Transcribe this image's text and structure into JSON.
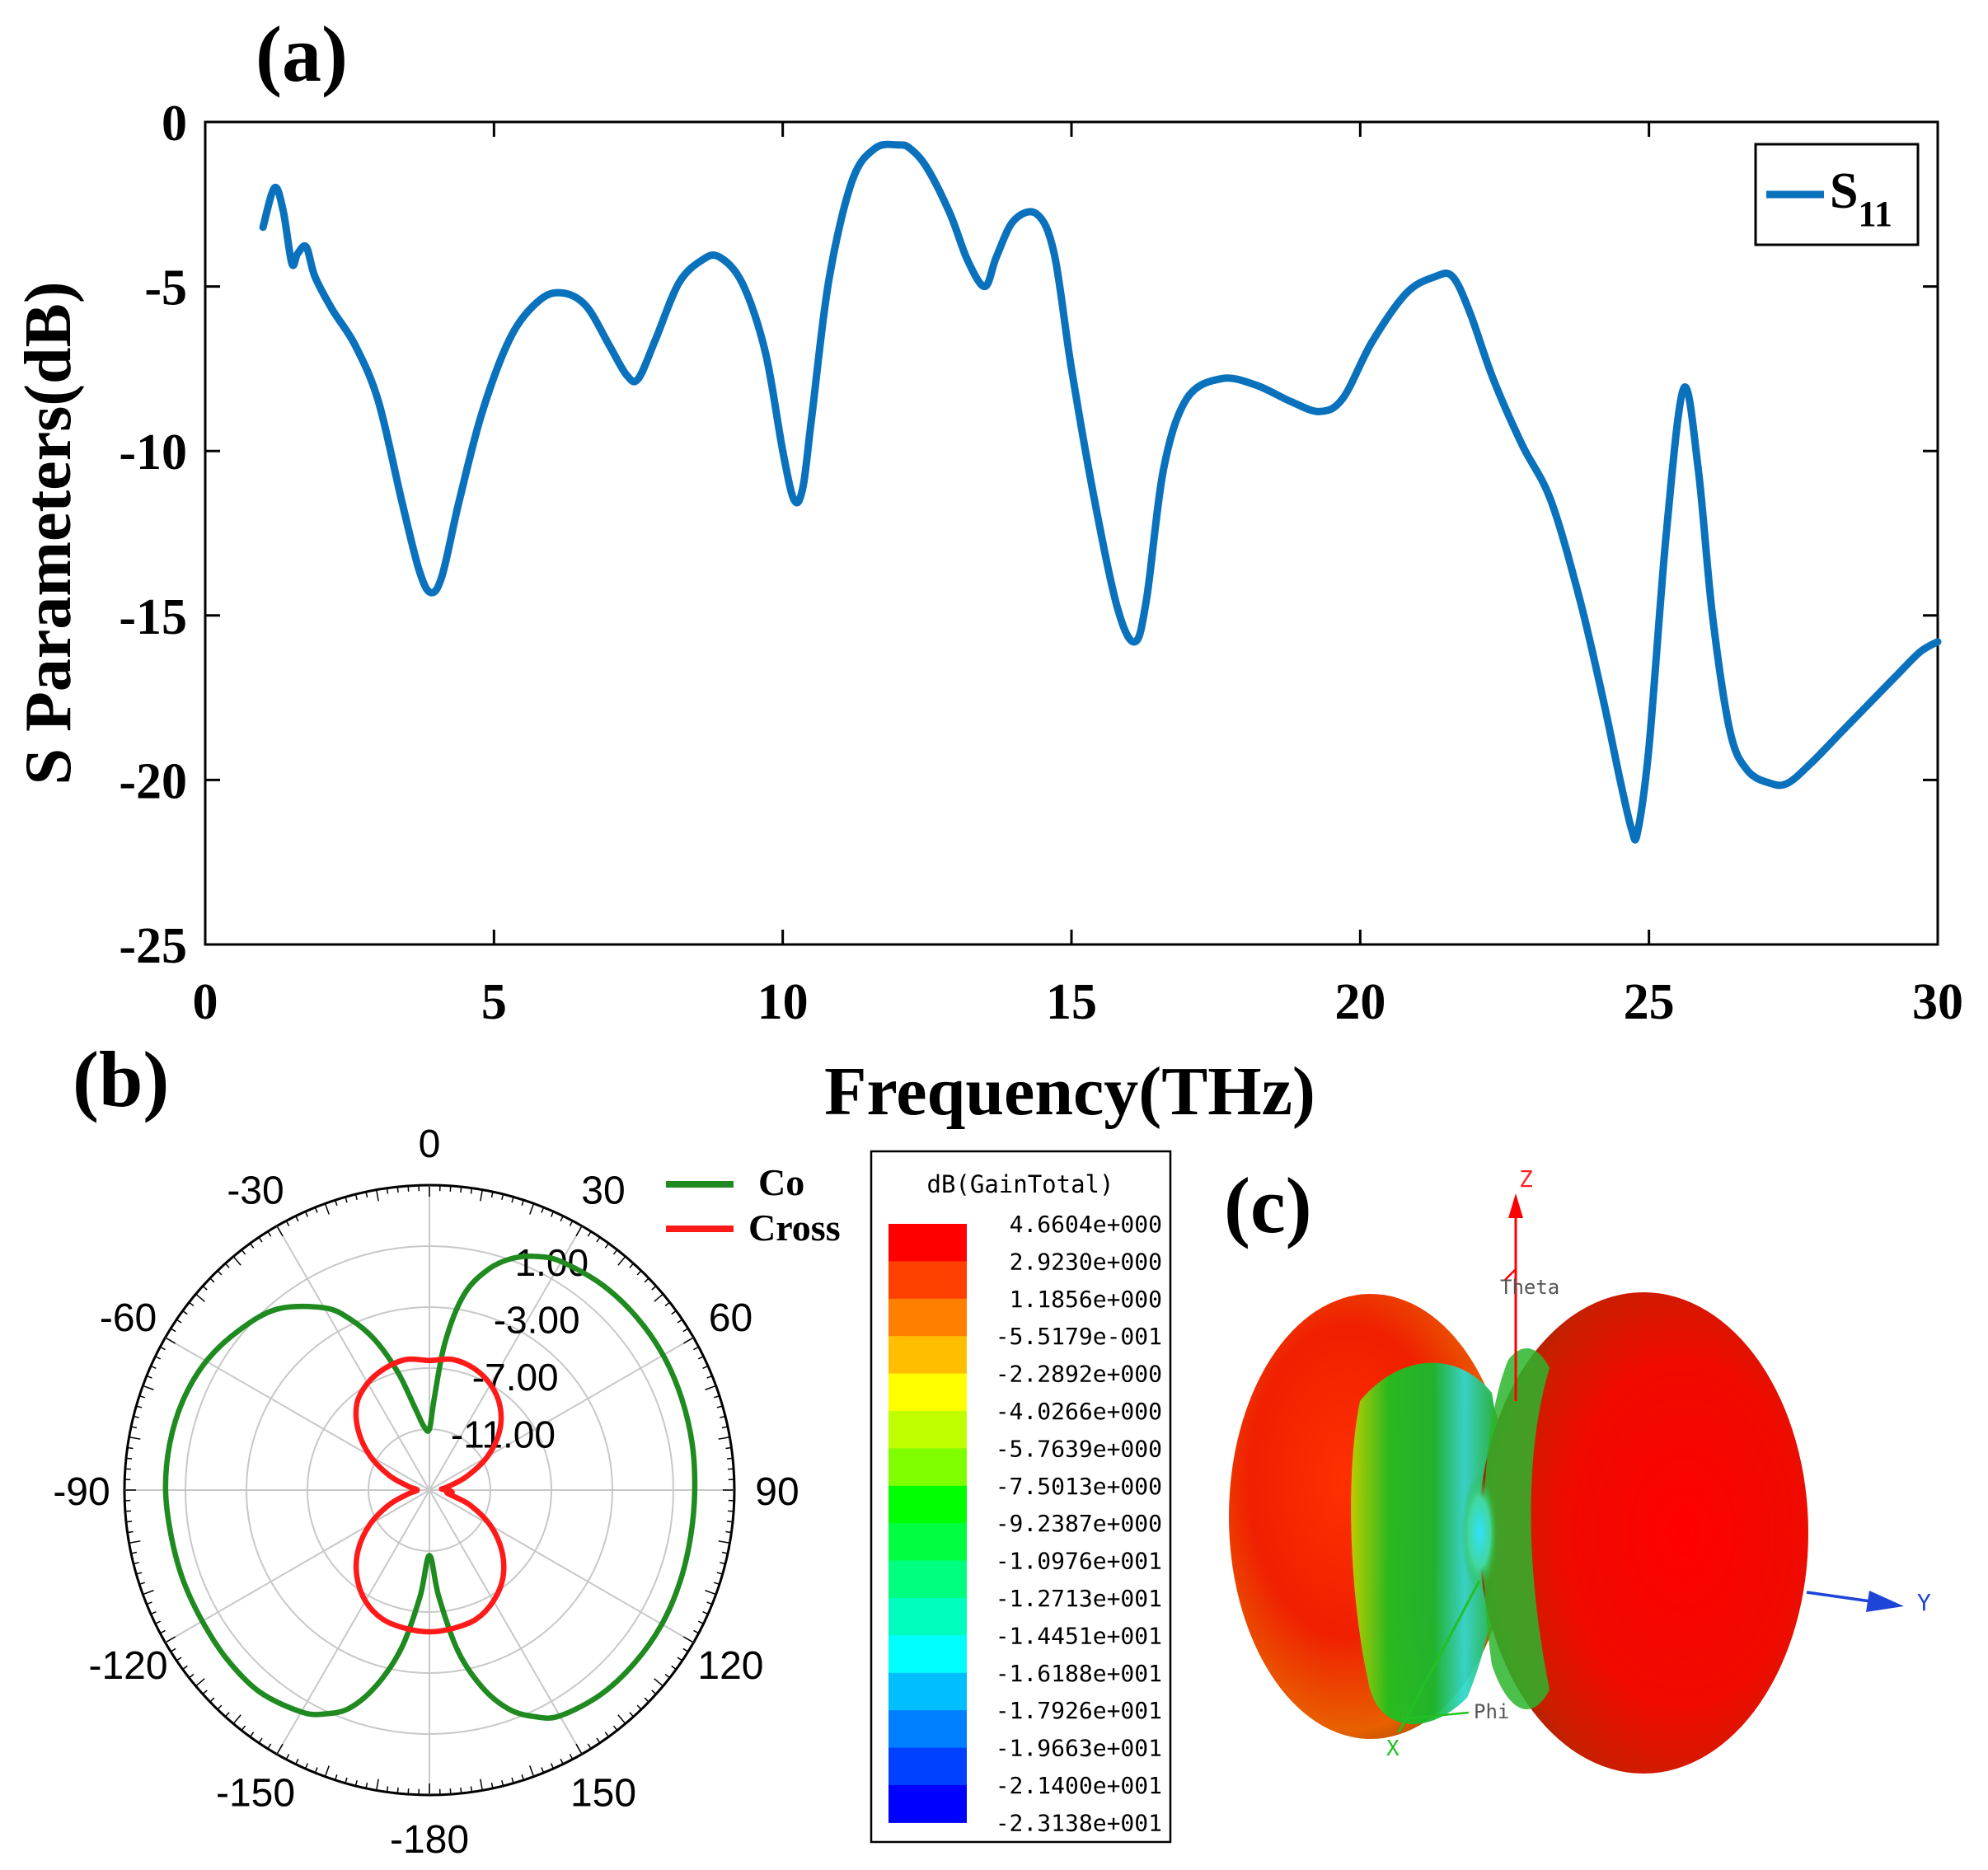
{
  "panels": {
    "a": "(a)",
    "b": "(b)",
    "c": "(c)"
  },
  "chart_data": [
    {
      "type": "line",
      "title": "",
      "xlabel": "Frequency(THz)",
      "ylabel": "S Parameters(dB)",
      "xlim": [
        0,
        30
      ],
      "ylim": [
        -25,
        0
      ],
      "xticks": [
        "0",
        "5",
        "10",
        "15",
        "20",
        "25",
        "30"
      ],
      "yticks": [
        "0",
        "-5",
        "-10",
        "-15",
        "-20",
        "-25"
      ],
      "legend": {
        "position": "top-right",
        "name": "S",
        "sub": "11"
      },
      "color": "#0a72bd",
      "series": [
        {
          "name": "S11",
          "x": [
            1.0,
            1.2,
            1.35,
            1.5,
            1.6,
            1.75,
            1.9,
            2.2,
            2.6,
            3.0,
            3.4,
            3.7,
            3.9,
            4.1,
            4.4,
            4.8,
            5.3,
            5.8,
            6.2,
            6.6,
            7.0,
            7.3,
            7.5,
            7.8,
            8.2,
            8.6,
            8.9,
            9.3,
            9.7,
            10.0,
            10.2,
            10.35,
            10.5,
            10.8,
            11.2,
            11.6,
            12.0,
            12.2,
            12.5,
            12.9,
            13.2,
            13.5,
            13.7,
            14.0,
            14.4,
            14.7,
            15.0,
            15.4,
            15.8,
            16.1,
            16.3,
            16.6,
            17.0,
            17.6,
            18.2,
            18.8,
            19.3,
            19.7,
            20.2,
            20.8,
            21.3,
            21.6,
            21.9,
            22.3,
            22.8,
            23.3,
            23.8,
            24.2,
            24.5,
            24.7,
            24.8,
            25.0,
            25.3,
            25.6,
            25.85,
            26.1,
            26.4,
            26.7,
            27.1,
            27.4,
            27.8,
            28.3,
            28.8,
            29.3,
            29.7,
            30.0
          ],
          "values": [
            -3.2,
            -2.0,
            -2.7,
            -4.3,
            -4.0,
            -3.8,
            -4.7,
            -5.7,
            -6.8,
            -8.5,
            -11.5,
            -13.6,
            -14.3,
            -13.8,
            -11.5,
            -8.8,
            -6.5,
            -5.4,
            -5.2,
            -5.6,
            -6.8,
            -7.7,
            -7.8,
            -6.6,
            -4.9,
            -4.2,
            -4.1,
            -4.9,
            -7.0,
            -10.0,
            -11.5,
            -11.1,
            -9.0,
            -4.8,
            -1.8,
            -0.8,
            -0.7,
            -0.8,
            -1.4,
            -2.8,
            -4.2,
            -5.0,
            -4.1,
            -3.0,
            -2.8,
            -4.0,
            -7.5,
            -11.5,
            -14.8,
            -15.8,
            -14.5,
            -10.5,
            -8.4,
            -7.8,
            -8.0,
            -8.5,
            -8.8,
            -8.4,
            -6.7,
            -5.2,
            -4.7,
            -4.7,
            -5.8,
            -7.8,
            -9.8,
            -11.5,
            -14.5,
            -17.5,
            -20.0,
            -21.5,
            -21.6,
            -19.0,
            -12.5,
            -8.1,
            -10.5,
            -15.0,
            -18.5,
            -19.7,
            -20.1,
            -20.1,
            -19.5,
            -18.6,
            -17.7,
            -16.8,
            -16.1,
            -15.8
          ]
        }
      ]
    },
    {
      "type": "polar",
      "title": "",
      "angle_labels": [
        "0",
        "30",
        "60",
        "90",
        "120",
        "150",
        "-180",
        "-150",
        "-120",
        "-90",
        "-60",
        "-30"
      ],
      "radial_labels": [
        "1.00",
        "-3.00",
        "-7.00",
        "-11.00"
      ],
      "rlim": [
        -15,
        5
      ],
      "legend": {
        "position": "top-right"
      },
      "series": [
        {
          "name": "Co",
          "color": "#1f8a1f",
          "theta": [
            0,
            3,
            6,
            10,
            15,
            20,
            25,
            30,
            40,
            50,
            60,
            70,
            80,
            90,
            100,
            110,
            120,
            130,
            140,
            150,
            155,
            160,
            165,
            170,
            175,
            180,
            185,
            190,
            195,
            200,
            205,
            210,
            220,
            230,
            240,
            250,
            260,
            270,
            280,
            290,
            300,
            310,
            320,
            330,
            335,
            340,
            345,
            350,
            355,
            360
          ],
          "values": [
            -11.0,
            -9.0,
            -5.3,
            -2.0,
            0.0,
            1.2,
            1.9,
            2.3,
            2.6,
            2.7,
            2.7,
            2.6,
            2.5,
            2.4,
            2.4,
            2.5,
            2.6,
            2.6,
            2.5,
            2.1,
            1.4,
            0.3,
            -1.6,
            -4.3,
            -8.0,
            -10.7,
            -8.0,
            -4.5,
            -1.8,
            0.2,
            1.2,
            1.8,
            2.3,
            2.3,
            2.2,
            2.2,
            2.2,
            2.3,
            2.3,
            2.2,
            1.9,
            1.3,
            0.5,
            -1.2,
            -2.6,
            -4.5,
            -7.0,
            -9.5,
            -10.8,
            -11.0
          ]
        },
        {
          "name": "Cross",
          "color": "#ff1a1a",
          "theta": [
            0,
            10,
            20,
            30,
            40,
            50,
            60,
            70,
            80,
            85,
            90,
            95,
            100,
            110,
            120,
            130,
            140,
            150,
            160,
            170,
            180,
            190,
            200,
            210,
            220,
            230,
            240,
            250,
            260,
            270,
            280,
            290,
            300,
            310,
            320,
            330,
            340,
            350,
            360
          ],
          "values": [
            -6.5,
            -6.3,
            -6.5,
            -7.0,
            -7.8,
            -9.0,
            -10.6,
            -12.4,
            -13.8,
            -14.2,
            -13.8,
            -13.5,
            -13.8,
            -12.2,
            -10.4,
            -8.8,
            -7.5,
            -6.6,
            -6.0,
            -5.8,
            -5.7,
            -5.8,
            -6.0,
            -6.6,
            -7.6,
            -8.9,
            -10.5,
            -12.2,
            -13.6,
            -14.2,
            -13.6,
            -12.2,
            -10.5,
            -8.9,
            -7.6,
            -6.9,
            -6.5,
            -6.3,
            -6.5
          ]
        }
      ]
    },
    {
      "type": "heatmap",
      "title": "dB(GainTotal)",
      "legend_values": [
        "4.6604e+000",
        "2.9230e+000",
        "1.1856e+000",
        "-5.5179e-001",
        "-2.2892e+000",
        "-4.0266e+000",
        "-5.7639e+000",
        "-7.5013e+000",
        "-9.2387e+000",
        "-1.0976e+001",
        "-1.2713e+001",
        "-1.4451e+001",
        "-1.6188e+001",
        "-1.7926e+001",
        "-1.9663e+001",
        "-2.1400e+001",
        "-2.3138e+001"
      ],
      "legend_colors": [
        "#ff0000",
        "#ff4000",
        "#ff7f00",
        "#ffbf00",
        "#ffff00",
        "#bfff00",
        "#7fff00",
        "#00ff00",
        "#00ff40",
        "#00ff7f",
        "#00ffbf",
        "#00ffff",
        "#00bfff",
        "#007fff",
        "#0040ff",
        "#0000ff"
      ],
      "axes": {
        "z": "Z",
        "y": "Y",
        "x": "X",
        "theta": "Theta",
        "phi": "Phi"
      }
    }
  ]
}
